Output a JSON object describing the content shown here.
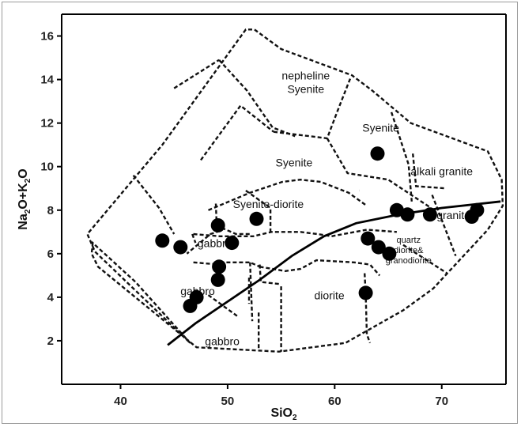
{
  "chart_data": {
    "type": "scatter",
    "title": "",
    "xlabel": "SiO",
    "xlabel_sub": "2",
    "ylabel_parts": [
      "Na",
      "2",
      "O+K",
      "2",
      "O"
    ],
    "xlim": [
      34.5,
      76
    ],
    "ylim": [
      0,
      17
    ],
    "xticks": [
      40,
      50,
      60,
      70
    ],
    "yticks": [
      2,
      4,
      6,
      8,
      10,
      12,
      14,
      16
    ],
    "grid": false,
    "legend": "none",
    "colors": {
      "points": "#000000",
      "boundary": "#111111",
      "divider": "#000000"
    },
    "field_labels": [
      {
        "lines": [
          "nepheline",
          "Syenite"
        ],
        "x": 57.3,
        "y": 14.0,
        "size": "normal"
      },
      {
        "lines": [
          "Syenite"
        ],
        "x": 64.3,
        "y": 11.6,
        "size": "normal"
      },
      {
        "lines": [
          "Syenite"
        ],
        "x": 56.2,
        "y": 10.0,
        "size": "normal"
      },
      {
        "lines": [
          "alkali granite"
        ],
        "x": 70.0,
        "y": 9.6,
        "size": "normal"
      },
      {
        "lines": [
          "Syenite-diorite"
        ],
        "x": 53.8,
        "y": 8.1,
        "size": "normal"
      },
      {
        "lines": [
          "gabbro"
        ],
        "x": 48.8,
        "y": 6.3,
        "size": "normal"
      },
      {
        "lines": [
          "gabbro"
        ],
        "x": 47.2,
        "y": 4.1,
        "size": "normal"
      },
      {
        "lines": [
          "gabbro"
        ],
        "x": 49.5,
        "y": 1.8,
        "size": "normal"
      },
      {
        "lines": [
          "diorite"
        ],
        "x": 59.5,
        "y": 3.9,
        "size": "normal"
      },
      {
        "lines": [
          "granite"
        ],
        "x": 71.1,
        "y": 7.6,
        "size": "normal"
      },
      {
        "lines": [
          "quartz",
          "diorite&",
          "granodiorite"
        ],
        "x": 66.9,
        "y": 6.5,
        "size": "small"
      }
    ],
    "points": [
      {
        "x": 43.9,
        "y": 6.6
      },
      {
        "x": 45.6,
        "y": 6.3
      },
      {
        "x": 49.1,
        "y": 7.3
      },
      {
        "x": 50.4,
        "y": 6.5
      },
      {
        "x": 49.2,
        "y": 5.4
      },
      {
        "x": 49.1,
        "y": 4.8
      },
      {
        "x": 47.1,
        "y": 4.0
      },
      {
        "x": 46.5,
        "y": 3.6
      },
      {
        "x": 52.7,
        "y": 7.6
      },
      {
        "x": 64.0,
        "y": 10.6
      },
      {
        "x": 63.1,
        "y": 6.7
      },
      {
        "x": 64.1,
        "y": 6.3
      },
      {
        "x": 65.1,
        "y": 6.0
      },
      {
        "x": 62.9,
        "y": 4.2
      },
      {
        "x": 65.8,
        "y": 8.0
      },
      {
        "x": 66.8,
        "y": 7.8
      },
      {
        "x": 68.9,
        "y": 7.8
      },
      {
        "x": 72.8,
        "y": 7.7
      },
      {
        "x": 73.3,
        "y": 8.0
      }
    ],
    "alkaline_subalkaline_divider": [
      [
        39.8,
        0.0
      ],
      [
        44.4,
        1.8
      ],
      [
        47,
        2.8
      ],
      [
        50,
        3.8
      ],
      [
        53,
        4.8
      ],
      [
        56,
        5.9
      ],
      [
        59,
        6.8
      ],
      [
        62,
        7.4
      ],
      [
        66,
        7.8
      ],
      [
        70,
        8.1
      ],
      [
        75.5,
        8.4
      ]
    ],
    "outer_boundary": [
      [
        46.5,
        1.9
      ],
      [
        41.4,
        4.7
      ],
      [
        37.4,
        6.5
      ],
      [
        37.3,
        6.0
      ],
      [
        37.9,
        5.4
      ],
      [
        47.1,
        1.7
      ],
      [
        54.8,
        1.5
      ],
      [
        61.0,
        1.9
      ],
      [
        66.4,
        3.4
      ],
      [
        69.2,
        4.4
      ],
      [
        74.3,
        7.1
      ],
      [
        75.7,
        8.2
      ],
      [
        75.6,
        9.4
      ],
      [
        74.3,
        10.7
      ],
      [
        67.1,
        12.0
      ],
      [
        63.5,
        13.5
      ],
      [
        61.6,
        14.2
      ],
      [
        55.0,
        15.4
      ],
      [
        52.5,
        16.3
      ],
      [
        51.7,
        16.3
      ],
      [
        43.9,
        11.0
      ],
      [
        36.9,
        6.9
      ],
      [
        37.6,
        6.1
      ]
    ],
    "field_boundaries": [
      [
        [
          41.2,
          9.6
        ],
        [
          43.6,
          8.1
        ],
        [
          45.0,
          6.9
        ]
      ],
      [
        [
          45.0,
          13.6
        ],
        [
          49.2,
          14.9
        ]
      ],
      [
        [
          49.2,
          14.9
        ],
        [
          51.8,
          13.5
        ],
        [
          54.2,
          11.8
        ],
        [
          56.3,
          11.4
        ]
      ],
      [
        [
          47.5,
          10.3
        ],
        [
          51.2,
          12.8
        ],
        [
          54.3,
          11.6
        ]
      ],
      [
        [
          54.3,
          11.6
        ],
        [
          59.3,
          11.3
        ],
        [
          60.3,
          12.6
        ],
        [
          61.5,
          14.1
        ]
      ],
      [
        [
          59.3,
          11.3
        ],
        [
          61.2,
          9.7
        ],
        [
          65.0,
          9.4
        ],
        [
          69.0,
          8.1
        ]
      ],
      [
        [
          65.3,
          12.5
        ],
        [
          66.9,
          10.1
        ],
        [
          67.2,
          8.4
        ]
      ],
      [
        [
          67.3,
          10.6
        ],
        [
          67.6,
          9.1
        ],
        [
          70.4,
          9.0
        ]
      ],
      [
        [
          62.3,
          8.9
        ],
        [
          62.3,
          8.9
        ]
      ],
      [
        [
          51.7,
          8.9
        ],
        [
          54.0,
          8.1
        ],
        [
          54.0,
          7.0
        ]
      ],
      [
        [
          48.2,
          8.0
        ],
        [
          52.1,
          8.8
        ],
        [
          55.1,
          9.3
        ],
        [
          56.8,
          9.4
        ],
        [
          58.7,
          9.3
        ],
        [
          61.3,
          8.8
        ],
        [
          63.0,
          8.2
        ]
      ],
      [
        [
          48.9,
          8.3
        ],
        [
          49.0,
          7.0
        ],
        [
          48.4,
          6.9
        ],
        [
          46.2,
          6.0
        ]
      ],
      [
        [
          48.9,
          7.3
        ],
        [
          50.8,
          6.9
        ],
        [
          52.2,
          6.9
        ]
      ],
      [
        [
          46.8,
          6.9
        ],
        [
          49.3,
          6.8
        ],
        [
          52.4,
          6.8
        ],
        [
          54.1,
          7.0
        ],
        [
          56.8,
          7.0
        ],
        [
          58.4,
          6.9
        ],
        [
          59.7,
          6.8
        ],
        [
          63.0,
          7.1
        ],
        [
          65.8,
          7.0
        ]
      ],
      [
        [
          49.3,
          5.6
        ],
        [
          52.1,
          5.6
        ],
        [
          53.0,
          5.4
        ]
      ],
      [
        [
          52.1,
          5.6
        ],
        [
          52.3,
          2.9
        ]
      ],
      [
        [
          53.0,
          5.4
        ],
        [
          55.4,
          5.2
        ],
        [
          56.8,
          5.3
        ],
        [
          58.3,
          5.7
        ],
        [
          61.8,
          5.6
        ],
        [
          63.3,
          5.5
        ],
        [
          64.2,
          5.0
        ]
      ],
      [
        [
          53.0,
          5.5
        ],
        [
          53.1,
          4.7
        ],
        [
          55.0,
          4.6
        ]
      ],
      [
        [
          52.0,
          4.9
        ],
        [
          52.0,
          3.7
        ]
      ],
      [
        [
          52.9,
          3.3
        ],
        [
          52.9,
          1.6
        ]
      ],
      [
        [
          55.0,
          4.5
        ],
        [
          55.0,
          1.5
        ]
      ],
      [
        [
          62.8,
          5.1
        ],
        [
          62.9,
          4.1
        ],
        [
          63.0,
          2.3
        ],
        [
          63.3,
          1.9
        ]
      ],
      [
        [
          63.6,
          6.9
        ],
        [
          63.0,
          6.7
        ]
      ],
      [
        [
          66.4,
          6.4
        ],
        [
          70.5,
          5.1
        ]
      ],
      [
        [
          48.2,
          4.1
        ],
        [
          51.0,
          3.1
        ]
      ],
      [
        [
          46.8,
          5.6
        ],
        [
          49.2,
          5.5
        ]
      ],
      [
        [
          46.7,
          6.9
        ],
        [
          47.0,
          6.5
        ]
      ],
      [
        [
          69.1,
          8.7
        ],
        [
          71.3,
          5.9
        ]
      ]
    ]
  }
}
